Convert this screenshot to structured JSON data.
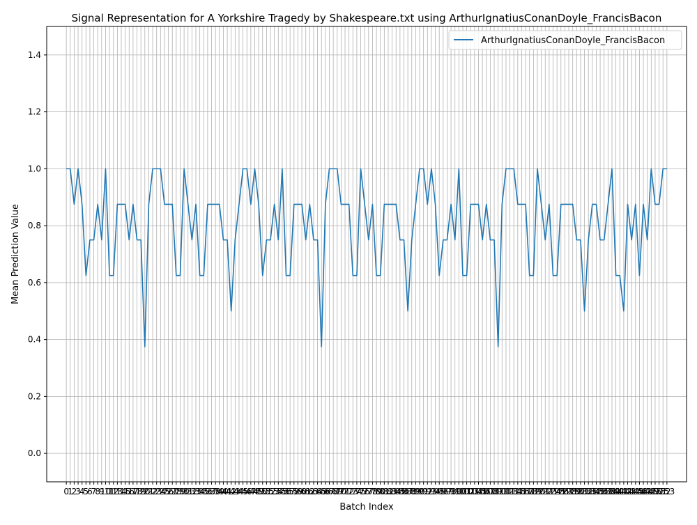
{
  "chart_data": {
    "type": "line",
    "title": "Signal Representation for A Yorkshire Tragedy by Shakespeare.txt using ArthurIgnatiusConanDoyle_FrancisBacon",
    "xlabel": "Batch Index",
    "ylabel": "Mean Prediction Value",
    "xlim": [
      -5,
      158
    ],
    "ylim": [
      -0.1,
      1.5
    ],
    "yticks": [
      0.0,
      0.2,
      0.4,
      0.6,
      0.8,
      1.0,
      1.2,
      1.4
    ],
    "grid": true,
    "legend": "top-right",
    "colors": {
      "series": "#1f77b4",
      "grid": "#b0b0b0"
    },
    "series": [
      {
        "name": "ArthurIgnatiusConanDoyle_FrancisBacon",
        "x": [
          0,
          1,
          2,
          3,
          4,
          5,
          6,
          7,
          8,
          9,
          10,
          11,
          12,
          13,
          14,
          15,
          16,
          17,
          18,
          19,
          20,
          21,
          22,
          23,
          24,
          25,
          26,
          27,
          28,
          29,
          30,
          31,
          32,
          33,
          34,
          35,
          36,
          37,
          38,
          39,
          40,
          41,
          42,
          43,
          44,
          45,
          46,
          47,
          48,
          49,
          50,
          51,
          52,
          53,
          54,
          55,
          56,
          57,
          58,
          59,
          60,
          61,
          62,
          63,
          64,
          65,
          66,
          67,
          68,
          69,
          70,
          71,
          72,
          73,
          74,
          75,
          76,
          77,
          78,
          79,
          80,
          81,
          82,
          83,
          84,
          85,
          86,
          87,
          88,
          89,
          90,
          91,
          92,
          93,
          94,
          95,
          96,
          97,
          98,
          99,
          100,
          101,
          102,
          103,
          104,
          105,
          106,
          107,
          108,
          109,
          110,
          111,
          112,
          113,
          114,
          115,
          116,
          117,
          118,
          119,
          120,
          121,
          122,
          123,
          124,
          125,
          126,
          127,
          128,
          129,
          130,
          131,
          132,
          133,
          134,
          135,
          136,
          137,
          138,
          139,
          140,
          141,
          142,
          143,
          144,
          145,
          146,
          147,
          148,
          149,
          150,
          151,
          152,
          153
        ],
        "values": [
          1.0,
          1.0,
          0.875,
          1.0,
          0.875,
          0.625,
          0.75,
          0.75,
          0.875,
          0.75,
          1.0,
          0.625,
          0.625,
          0.875,
          0.875,
          0.875,
          0.75,
          0.875,
          0.75,
          0.75,
          0.375,
          0.875,
          1.0,
          1.0,
          1.0,
          0.875,
          0.875,
          0.875,
          0.625,
          0.625,
          1.0,
          0.875,
          0.75,
          0.875,
          0.625,
          0.625,
          0.875,
          0.875,
          0.875,
          0.875,
          0.75,
          0.75,
          0.5,
          0.75,
          0.875,
          1.0,
          1.0,
          0.875,
          1.0,
          0.875,
          0.625,
          0.75,
          0.75,
          0.875,
          0.75,
          1.0,
          0.625,
          0.625,
          0.875,
          0.875,
          0.875,
          0.75,
          0.875,
          0.75,
          0.75,
          0.375,
          0.875,
          1.0,
          1.0,
          1.0,
          0.875,
          0.875,
          0.875,
          0.625,
          0.625,
          1.0,
          0.875,
          0.75,
          0.875,
          0.625,
          0.625,
          0.875,
          0.875,
          0.875,
          0.875,
          0.75,
          0.75,
          0.5,
          0.75,
          0.875,
          1.0,
          1.0,
          0.875,
          1.0,
          0.875,
          0.625,
          0.75,
          0.75,
          0.875,
          0.75,
          1.0,
          0.625,
          0.625,
          0.875,
          0.875,
          0.875,
          0.75,
          0.875,
          0.75,
          0.75,
          0.375,
          0.875,
          1.0,
          1.0,
          1.0,
          0.875,
          0.875,
          0.875,
          0.625,
          0.625,
          1.0,
          0.875,
          0.75,
          0.875,
          0.625,
          0.625,
          0.875,
          0.875,
          0.875,
          0.875,
          0.75,
          0.75,
          0.5,
          0.75,
          0.875,
          0.875,
          0.75,
          0.75,
          0.875,
          1.0,
          0.625,
          0.625,
          0.5,
          0.875,
          0.75,
          0.875,
          0.625,
          0.875,
          0.75,
          1.0,
          0.875,
          0.875,
          1.0,
          1.0
        ]
      }
    ]
  }
}
